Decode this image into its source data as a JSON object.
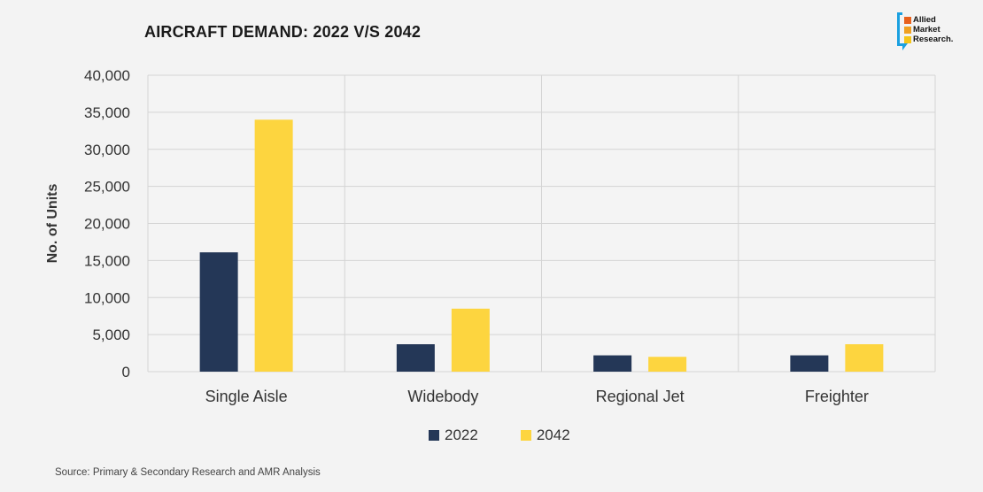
{
  "title": "AIRCRAFT DEMAND: 2022 V/S 2042",
  "logo": {
    "lines": [
      "Allied",
      "Market",
      "Research."
    ],
    "colors": [
      "#e8601c",
      "#f0a020",
      "#f5c518"
    ]
  },
  "source": "Source: Primary & Secondary Research and AMR Analysis",
  "chart_data": {
    "type": "bar",
    "title": "AIRCRAFT DEMAND: 2022 V/S 2042",
    "xlabel": "",
    "ylabel": "No. of Units",
    "categories": [
      "Single Aisle",
      "Widebody",
      "Regional Jet",
      "Freighter"
    ],
    "series": [
      {
        "name": "2022",
        "color": "#243757",
        "values": [
          16100,
          3700,
          2200,
          2200
        ]
      },
      {
        "name": "2042",
        "color": "#fdd53f",
        "values": [
          34000,
          8500,
          2000,
          3700
        ]
      }
    ],
    "ylim": [
      0,
      40000
    ],
    "yticks": [
      "0",
      "5,000",
      "10,000",
      "15,000",
      "20,000",
      "25,000",
      "30,000",
      "35,000",
      "40,000"
    ],
    "grid": true,
    "legend_position": "bottom"
  }
}
